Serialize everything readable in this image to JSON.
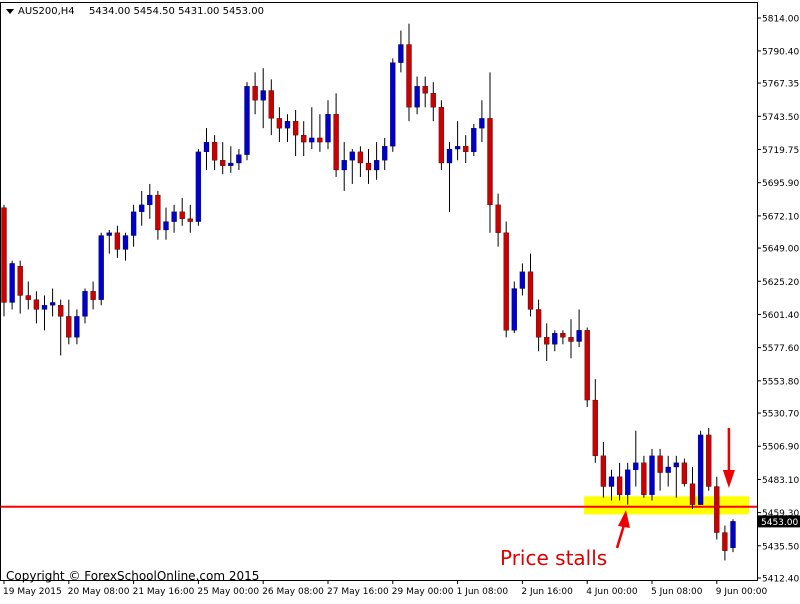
{
  "header": {
    "symbol_timeframe": "AUS200,H4",
    "ohlc": "5434.00 5454.50 5431.00 5453.00"
  },
  "copyright": "Copyright © ForexSchoolOnline.com 2015",
  "annotation": {
    "text": "Price stalls"
  },
  "colors": {
    "bull": "#0000cc",
    "bear": "#cc0000",
    "support_line": "#ff0000",
    "zone": "#ffff00",
    "grid": "#e0e0e0",
    "axis": "#000000",
    "price_tag_bg": "#000000",
    "price_tag_text": "#ffffff"
  },
  "chart_data": {
    "type": "candlestick",
    "y_ticks": [
      "5814.00",
      "5790.40",
      "5767.35",
      "5743.50",
      "5719.75",
      "5695.90",
      "5672.10",
      "5649.00",
      "5625.20",
      "5601.40",
      "5577.60",
      "5553.80",
      "5530.70",
      "5506.90",
      "5483.10",
      "5459.30",
      "5435.50",
      "5412.40"
    ],
    "y_tick_values": [
      5814.0,
      5790.4,
      5767.35,
      5743.5,
      5719.75,
      5695.9,
      5672.1,
      5649.0,
      5625.2,
      5601.4,
      5577.6,
      5553.8,
      5530.7,
      5506.9,
      5483.1,
      5459.3,
      5435.5,
      5412.4
    ],
    "ylim": [
      5410,
      5825
    ],
    "x_labels": [
      "19 May 2015",
      "20 May 08:00",
      "21 May 16:00",
      "25 May 00:00",
      "26 May 08:00",
      "27 May 16:00",
      "29 May 00:00",
      "1 Jun 08:00",
      "2 Jun 16:00",
      "4 Jun 00:00",
      "5 Jun 08:00",
      "9 Jun 00:00"
    ],
    "x_label_index": [
      0,
      8,
      16,
      24,
      32,
      40,
      48,
      56,
      64,
      72,
      80,
      88
    ],
    "current_price": "5453.00",
    "current_price_value": 5453.0,
    "support_level": 5463.5,
    "zone": [
      5458,
      5471
    ],
    "candles": [
      [
        5678,
        5680,
        5600,
        5610
      ],
      [
        5610,
        5640,
        5605,
        5638
      ],
      [
        5636,
        5640,
        5602,
        5615
      ],
      [
        5615,
        5625,
        5605,
        5612
      ],
      [
        5612,
        5618,
        5595,
        5605
      ],
      [
        5605,
        5615,
        5590,
        5608
      ],
      [
        5608,
        5620,
        5600,
        5610
      ],
      [
        5608,
        5612,
        5572,
        5600
      ],
      [
        5600,
        5612,
        5580,
        5585
      ],
      [
        5585,
        5605,
        5580,
        5600
      ],
      [
        5600,
        5620,
        5595,
        5618
      ],
      [
        5618,
        5625,
        5605,
        5612
      ],
      [
        5612,
        5660,
        5608,
        5658
      ],
      [
        5658,
        5662,
        5645,
        5660
      ],
      [
        5660,
        5665,
        5642,
        5648
      ],
      [
        5648,
        5660,
        5640,
        5658
      ],
      [
        5658,
        5680,
        5650,
        5675
      ],
      [
        5675,
        5690,
        5665,
        5680
      ],
      [
        5680,
        5695,
        5670,
        5687
      ],
      [
        5687,
        5690,
        5655,
        5662
      ],
      [
        5662,
        5678,
        5655,
        5668
      ],
      [
        5668,
        5680,
        5660,
        5675
      ],
      [
        5675,
        5685,
        5665,
        5670
      ],
      [
        5670,
        5680,
        5660,
        5668
      ],
      [
        5668,
        5720,
        5665,
        5718
      ],
      [
        5718,
        5735,
        5705,
        5725
      ],
      [
        5725,
        5730,
        5705,
        5712
      ],
      [
        5712,
        5725,
        5702,
        5708
      ],
      [
        5708,
        5722,
        5703,
        5710
      ],
      [
        5710,
        5720,
        5705,
        5716
      ],
      [
        5716,
        5768,
        5712,
        5765
      ],
      [
        5765,
        5775,
        5745,
        5755
      ],
      [
        5755,
        5778,
        5735,
        5762
      ],
      [
        5762,
        5770,
        5730,
        5742
      ],
      [
        5742,
        5750,
        5725,
        5735
      ],
      [
        5735,
        5745,
        5725,
        5740
      ],
      [
        5740,
        5748,
        5715,
        5730
      ],
      [
        5730,
        5740,
        5715,
        5725
      ],
      [
        5725,
        5750,
        5720,
        5728
      ],
      [
        5728,
        5745,
        5718,
        5725
      ],
      [
        5725,
        5755,
        5720,
        5745
      ],
      [
        5745,
        5760,
        5700,
        5705
      ],
      [
        5705,
        5725,
        5690,
        5712
      ],
      [
        5712,
        5720,
        5695,
        5718
      ],
      [
        5718,
        5722,
        5700,
        5710
      ],
      [
        5710,
        5720,
        5695,
        5705
      ],
      [
        5705,
        5725,
        5698,
        5712
      ],
      [
        5712,
        5728,
        5705,
        5722
      ],
      [
        5722,
        5785,
        5718,
        5782
      ],
      [
        5782,
        5805,
        5775,
        5795
      ],
      [
        5795,
        5810,
        5740,
        5750
      ],
      [
        5750,
        5772,
        5745,
        5765
      ],
      [
        5765,
        5772,
        5750,
        5760
      ],
      [
        5760,
        5768,
        5740,
        5750
      ],
      [
        5750,
        5755,
        5705,
        5710
      ],
      [
        5710,
        5725,
        5675,
        5720
      ],
      [
        5720,
        5740,
        5712,
        5722
      ],
      [
        5722,
        5730,
        5710,
        5718
      ],
      [
        5718,
        5738,
        5715,
        5735
      ],
      [
        5735,
        5755,
        5725,
        5742
      ],
      [
        5742,
        5775,
        5660,
        5680
      ],
      [
        5680,
        5688,
        5650,
        5660
      ],
      [
        5660,
        5668,
        5585,
        5590
      ],
      [
        5590,
        5625,
        5588,
        5620
      ],
      [
        5620,
        5638,
        5615,
        5632
      ],
      [
        5632,
        5645,
        5600,
        5605
      ],
      [
        5605,
        5612,
        5575,
        5585
      ],
      [
        5585,
        5595,
        5568,
        5580
      ],
      [
        5580,
        5590,
        5575,
        5588
      ],
      [
        5588,
        5590,
        5580,
        5585
      ],
      [
        5585,
        5598,
        5570,
        5582
      ],
      [
        5582,
        5605,
        5578,
        5590
      ],
      [
        5590,
        5592,
        5535,
        5540
      ],
      [
        5540,
        5555,
        5495,
        5500
      ],
      [
        5500,
        5510,
        5470,
        5478
      ],
      [
        5478,
        5490,
        5468,
        5485
      ],
      [
        5485,
        5495,
        5468,
        5472
      ],
      [
        5472,
        5495,
        5465,
        5490
      ],
      [
        5490,
        5518,
        5478,
        5495
      ],
      [
        5495,
        5500,
        5470,
        5472
      ],
      [
        5472,
        5505,
        5468,
        5500
      ],
      [
        5500,
        5505,
        5475,
        5488
      ],
      [
        5488,
        5500,
        5478,
        5492
      ],
      [
        5492,
        5500,
        5470,
        5495
      ],
      [
        5495,
        5498,
        5478,
        5480
      ],
      [
        5480,
        5492,
        5462,
        5465
      ],
      [
        5465,
        5518,
        5465,
        5515
      ],
      [
        5515,
        5520,
        5475,
        5478
      ],
      [
        5478,
        5485,
        5440,
        5445
      ],
      [
        5445,
        5450,
        5425,
        5432
      ],
      [
        5434,
        5454.5,
        5431,
        5453
      ]
    ]
  }
}
